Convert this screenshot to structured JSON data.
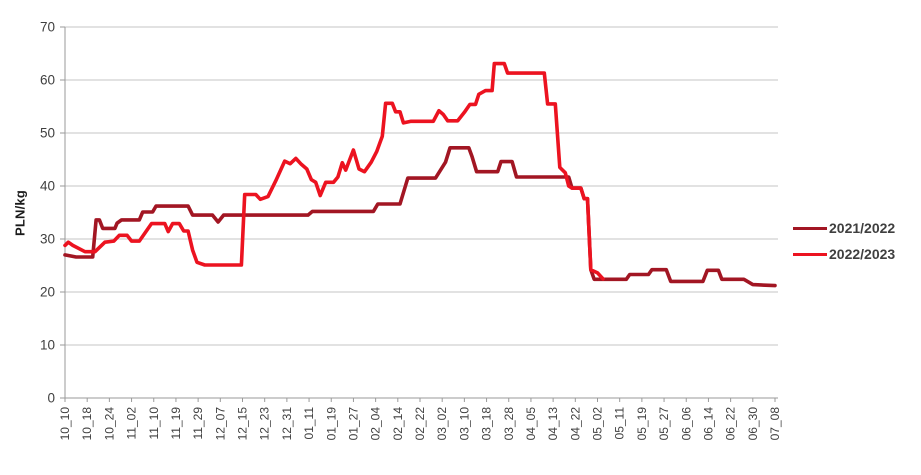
{
  "chart_data": {
    "type": "line",
    "title": "",
    "xlabel": "",
    "ylabel": "PLN/kg",
    "ylim": [
      0,
      70
    ],
    "yticks": [
      0,
      10,
      20,
      30,
      40,
      50,
      60,
      70
    ],
    "grid": "horizontal",
    "legend_position": "right",
    "x_categories": [
      "10_10",
      "10_18",
      "10_24",
      "11_02",
      "11_10",
      "11_19",
      "11_29",
      "12_07",
      "12_15",
      "12_23",
      "12_31",
      "01_11",
      "01_19",
      "01_27",
      "02_04",
      "02_14",
      "02_22",
      "03_02",
      "03_10",
      "03_18",
      "03_28",
      "04_05",
      "04_13",
      "04_22",
      "05_02",
      "05_11",
      "05_19",
      "05_27",
      "06_06",
      "06_14",
      "06_22",
      "06_30",
      "07_08"
    ],
    "x_unit_note": "series points use fractional x index into x_categories, y in PLN/kg",
    "series": [
      {
        "name": "2021/2022",
        "color": "#A21623",
        "points": [
          [
            0,
            27
          ],
          [
            0.5,
            26.6
          ],
          [
            1.25,
            26.6
          ],
          [
            1.4,
            33.6
          ],
          [
            1.55,
            33.6
          ],
          [
            1.7,
            32
          ],
          [
            2.25,
            32
          ],
          [
            2.35,
            33
          ],
          [
            2.55,
            33.6
          ],
          [
            3.35,
            33.6
          ],
          [
            3.5,
            35.1
          ],
          [
            3.95,
            35.1
          ],
          [
            4.1,
            36.2
          ],
          [
            5.55,
            36.2
          ],
          [
            5.75,
            34.5
          ],
          [
            6.65,
            34.5
          ],
          [
            6.9,
            33.2
          ],
          [
            7.15,
            34.5
          ],
          [
            10.95,
            34.5
          ],
          [
            11.15,
            35.2
          ],
          [
            13.9,
            35.2
          ],
          [
            14.1,
            36.6
          ],
          [
            15.1,
            36.6
          ],
          [
            15.45,
            41.5
          ],
          [
            16.7,
            41.5
          ],
          [
            17.15,
            44.5
          ],
          [
            17.35,
            47.2
          ],
          [
            18.2,
            47.2
          ],
          [
            18.35,
            45.5
          ],
          [
            18.55,
            42.7
          ],
          [
            19.5,
            42.7
          ],
          [
            19.65,
            44.6
          ],
          [
            20.15,
            44.6
          ],
          [
            20.35,
            41.7
          ],
          [
            22.7,
            41.7
          ],
          [
            22.85,
            39.6
          ],
          [
            23.25,
            39.6
          ],
          [
            23.4,
            37.6
          ],
          [
            23.55,
            37.6
          ],
          [
            23.7,
            24.2
          ],
          [
            23.85,
            22.4
          ],
          [
            25.3,
            22.4
          ],
          [
            25.45,
            23.3
          ],
          [
            26.3,
            23.3
          ],
          [
            26.45,
            24.2
          ],
          [
            27.1,
            24.2
          ],
          [
            27.3,
            22
          ],
          [
            28.75,
            22
          ],
          [
            28.95,
            24.1
          ],
          [
            29.45,
            24.1
          ],
          [
            29.6,
            22.4
          ],
          [
            30.6,
            22.4
          ],
          [
            31,
            21.4
          ],
          [
            32,
            21.2
          ]
        ]
      },
      {
        "name": "2022/2023",
        "color": "#EC1320",
        "points": [
          [
            0,
            28.8
          ],
          [
            0.15,
            29.4
          ],
          [
            0.35,
            28.8
          ],
          [
            0.9,
            27.6
          ],
          [
            1.35,
            27.6
          ],
          [
            1.8,
            29.4
          ],
          [
            2.2,
            29.6
          ],
          [
            2.45,
            30.7
          ],
          [
            2.8,
            30.7
          ],
          [
            3,
            29.6
          ],
          [
            3.35,
            29.6
          ],
          [
            3.9,
            32.9
          ],
          [
            4.5,
            32.9
          ],
          [
            4.65,
            31.4
          ],
          [
            4.85,
            32.9
          ],
          [
            5.15,
            32.9
          ],
          [
            5.35,
            31.5
          ],
          [
            5.55,
            31.5
          ],
          [
            5.75,
            27.9
          ],
          [
            5.95,
            25.6
          ],
          [
            6.3,
            25.1
          ],
          [
            7.95,
            25.1
          ],
          [
            8.1,
            38.4
          ],
          [
            8.6,
            38.4
          ],
          [
            8.8,
            37.5
          ],
          [
            9.15,
            38
          ],
          [
            9.5,
            41
          ],
          [
            9.9,
            44.7
          ],
          [
            10.15,
            44.2
          ],
          [
            10.4,
            45.2
          ],
          [
            10.65,
            44.1
          ],
          [
            10.9,
            43.2
          ],
          [
            11.1,
            41.2
          ],
          [
            11.3,
            40.7
          ],
          [
            11.5,
            38.2
          ],
          [
            11.75,
            40.7
          ],
          [
            12.1,
            40.7
          ],
          [
            12.3,
            41.7
          ],
          [
            12.5,
            44.4
          ],
          [
            12.65,
            43
          ],
          [
            13,
            46.8
          ],
          [
            13.25,
            43.2
          ],
          [
            13.5,
            42.7
          ],
          [
            13.8,
            44.5
          ],
          [
            14.05,
            46.5
          ],
          [
            14.3,
            49.4
          ],
          [
            14.45,
            55.6
          ],
          [
            14.75,
            55.6
          ],
          [
            14.9,
            54
          ],
          [
            15.1,
            54
          ],
          [
            15.25,
            51.9
          ],
          [
            15.6,
            52.2
          ],
          [
            16.6,
            52.2
          ],
          [
            16.85,
            54.2
          ],
          [
            17.05,
            53.5
          ],
          [
            17.25,
            52.3
          ],
          [
            17.7,
            52.3
          ],
          [
            18,
            53.9
          ],
          [
            18.25,
            55.4
          ],
          [
            18.5,
            55.4
          ],
          [
            18.65,
            57.3
          ],
          [
            18.95,
            58
          ],
          [
            19.25,
            58
          ],
          [
            19.35,
            63.1
          ],
          [
            19.8,
            63.1
          ],
          [
            19.95,
            61.3
          ],
          [
            21.6,
            61.3
          ],
          [
            21.75,
            55.5
          ],
          [
            22.1,
            55.5
          ],
          [
            22.3,
            43.5
          ],
          [
            22.55,
            42.5
          ],
          [
            22.7,
            40
          ],
          [
            22.85,
            39.6
          ],
          [
            23.25,
            39.6
          ],
          [
            23.4,
            37.6
          ],
          [
            23.55,
            37.6
          ],
          [
            23.7,
            24.2
          ],
          [
            24,
            23.6
          ],
          [
            24.25,
            22.5
          ]
        ]
      }
    ]
  },
  "axis": {
    "y_label": "PLN/kg"
  },
  "colors": {
    "background": "#ffffff",
    "gridline": "#c6c6c6",
    "axis_line": "#9a9a9a",
    "tick_text": "#3f3f3f",
    "series_dark_red": "#A21623",
    "series_bright_red": "#EC1320"
  }
}
